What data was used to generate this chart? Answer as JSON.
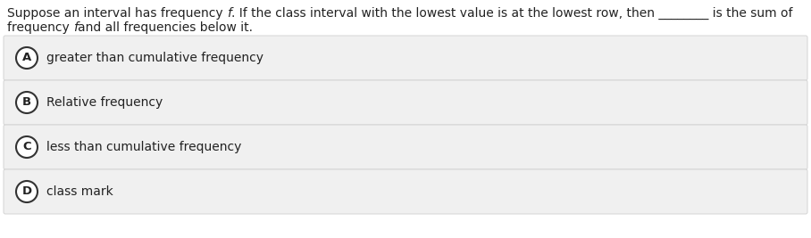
{
  "question_line1": "Suppose an interval has frequency ",
  "question_f1": "f",
  "question_line1b": ". If the class interval with the lowest value is at the lowest row, then ________ is the sum of",
  "question_line2": "frequency ",
  "question_f2": "f",
  "question_line2b": "and all frequencies below it.",
  "options": [
    {
      "label": "A",
      "text": "greater than cumulative frequency"
    },
    {
      "label": "B",
      "text": "Relative frequency"
    },
    {
      "label": "C",
      "text": "less than cumulative frequency"
    },
    {
      "label": "D",
      "text": "class mark"
    }
  ],
  "option_box_color": "#f0f0f0",
  "option_box_edge_color": "#d4d4d4",
  "circle_facecolor": "#ffffff",
  "circle_edgecolor": "#333333",
  "text_color": "#222222",
  "bg_color": "#ffffff",
  "question_fontsize": 10.0,
  "option_fontsize": 10.0,
  "label_fontsize": 9.5,
  "fig_width": 9.08,
  "fig_height": 2.67,
  "dpi": 100
}
